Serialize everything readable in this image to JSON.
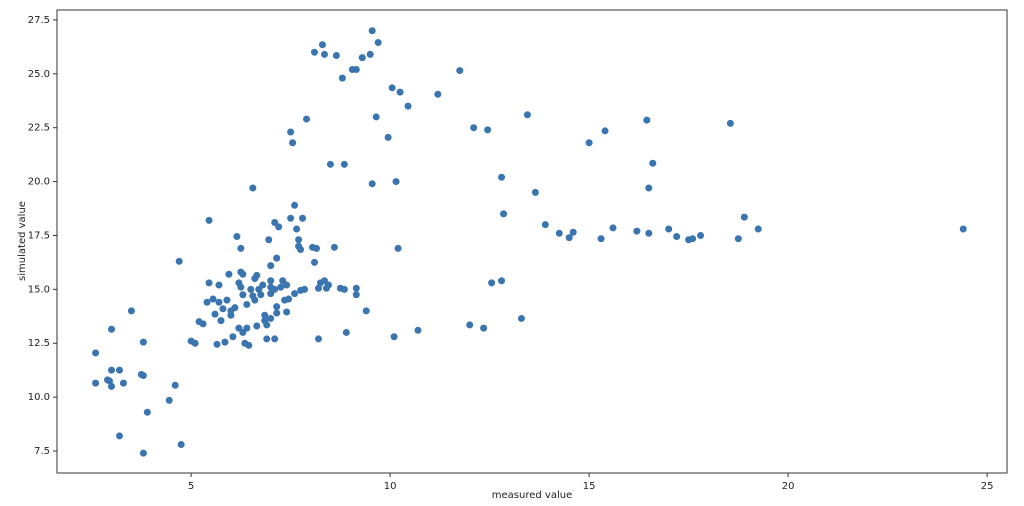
{
  "chart_data": {
    "type": "scatter",
    "x_label": "measured value",
    "y_label": "simulated value",
    "color": "#3a75b0",
    "x": [
      2.6,
      2.6,
      2.9,
      2.95,
      3.0,
      3.0,
      3.0,
      3.2,
      3.3,
      3.2,
      3.5,
      3.75,
      3.8,
      3.8,
      3.8,
      3.9,
      4.45,
      4.6,
      4.7,
      4.75,
      5.0,
      5.1,
      5.2,
      5.3,
      5.4,
      5.45,
      5.45,
      5.55,
      5.6,
      5.65,
      5.7,
      5.7,
      5.75,
      5.8,
      5.85,
      5.9,
      5.95,
      6.0,
      6.0,
      6.05,
      6.1,
      6.15,
      6.2,
      6.2,
      6.25,
      6.25,
      6.25,
      6.3,
      6.3,
      6.3,
      6.35,
      6.4,
      6.4,
      6.45,
      6.5,
      6.55,
      6.55,
      6.6,
      6.6,
      6.65,
      6.65,
      6.7,
      6.75,
      6.8,
      6.85,
      6.85,
      6.9,
      6.9,
      6.95,
      7.0,
      7.0,
      7.0,
      7.0,
      7.0,
      7.1,
      7.1,
      7.15,
      7.15,
      7.15,
      7.1,
      7.2,
      7.25,
      7.3,
      7.35,
      7.4,
      7.4,
      7.45,
      7.5,
      7.5,
      7.55,
      7.6,
      7.65,
      7.6,
      7.7,
      7.7,
      7.75,
      7.8,
      7.85,
      7.9,
      7.75,
      8.05,
      8.1,
      8.15,
      8.2,
      8.2,
      8.25,
      8.35,
      8.4,
      8.45,
      8.5,
      8.6,
      8.65,
      8.1,
      8.3,
      8.35,
      8.75,
      8.8,
      8.85,
      8.85,
      8.9,
      9.05,
      9.15,
      9.15,
      9.15,
      9.3,
      9.4,
      9.5,
      9.55,
      9.55,
      9.65,
      9.7,
      9.95,
      10.05,
      10.1,
      10.15,
      10.2,
      10.25,
      10.45,
      10.7,
      11.2,
      11.75,
      12.0,
      12.1,
      12.35,
      12.45,
      12.55,
      12.8,
      12.8,
      12.85,
      13.3,
      13.45,
      13.65,
      13.9,
      14.25,
      14.5,
      14.6,
      15.0,
      15.3,
      15.4,
      15.6,
      16.2,
      16.5,
      16.45,
      16.5,
      16.6,
      17.0,
      17.2,
      17.5,
      17.6,
      17.8,
      18.55,
      18.75,
      18.9,
      19.25,
      24.4
    ],
    "values": [
      12.05,
      10.65,
      10.8,
      10.75,
      10.5,
      11.25,
      13.15,
      11.25,
      10.65,
      8.2,
      14.0,
      11.05,
      11.0,
      12.55,
      7.4,
      9.3,
      9.85,
      10.55,
      16.3,
      7.8,
      12.6,
      12.5,
      13.5,
      13.4,
      14.4,
      15.3,
      18.2,
      14.55,
      13.85,
      12.45,
      15.2,
      14.4,
      13.55,
      14.1,
      12.55,
      14.5,
      15.7,
      14.0,
      13.8,
      12.8,
      14.15,
      17.45,
      15.3,
      13.2,
      16.9,
      15.8,
      15.1,
      14.75,
      13.0,
      15.7,
      12.5,
      14.3,
      13.2,
      12.4,
      15.0,
      19.7,
      14.7,
      15.5,
      14.5,
      15.65,
      13.3,
      15.0,
      14.75,
      15.2,
      13.8,
      13.55,
      12.7,
      13.35,
      17.3,
      15.1,
      14.8,
      13.65,
      15.4,
      16.1,
      15.0,
      18.1,
      16.45,
      14.2,
      13.9,
      12.7,
      17.9,
      15.1,
      15.4,
      14.5,
      15.2,
      13.95,
      14.55,
      18.3,
      22.3,
      21.8,
      18.9,
      17.8,
      14.8,
      17.3,
      17.0,
      14.95,
      18.3,
      15.0,
      22.9,
      16.85,
      16.95,
      16.25,
      16.9,
      15.05,
      12.7,
      15.3,
      15.4,
      15.05,
      15.2,
      20.8,
      16.95,
      25.85,
      26.0,
      26.35,
      25.9,
      15.05,
      24.8,
      20.8,
      15.0,
      13.0,
      25.2,
      25.2,
      15.05,
      14.75,
      25.75,
      14.0,
      25.9,
      27.0,
      19.9,
      23.0,
      26.45,
      22.05,
      24.35,
      12.8,
      20.0,
      16.9,
      24.15,
      23.5,
      13.1,
      24.05,
      25.15,
      13.35,
      22.5,
      13.2,
      22.4,
      15.3,
      15.4,
      20.2,
      18.5,
      13.65,
      23.1,
      19.5,
      18.0,
      17.6,
      17.4,
      17.65,
      21.8,
      17.35,
      22.35,
      17.85,
      17.7,
      17.6,
      22.85,
      19.7,
      20.85,
      17.8,
      17.45,
      17.3,
      17.35,
      17.5,
      22.7,
      17.35,
      18.35,
      17.8,
      17.8
    ],
    "xlim": [
      1.63,
      25.5
    ],
    "ylim": [
      6.48,
      27.96
    ],
    "xticks": [
      5,
      10,
      15,
      20,
      25
    ],
    "yticks": [
      7.5,
      {
        "value": 10,
        "label": "10.0"
      },
      12.5,
      {
        "value": 15,
        "label": "15.0"
      },
      17.5,
      {
        "value": 20,
        "label": "20.0"
      },
      22.5,
      {
        "value": 25,
        "label": "25.0"
      },
      27.5
    ]
  }
}
